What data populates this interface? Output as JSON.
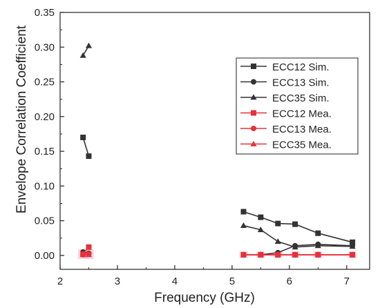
{
  "chart_data": {
    "type": "line",
    "title": "",
    "xlabel": "Frequency (GHz)",
    "ylabel": "Envelope Correlation Coefficient",
    "xlim": [
      2,
      7.4
    ],
    "ylim": [
      -0.02,
      0.35
    ],
    "x_ticks": [
      2,
      3,
      4,
      5,
      6,
      7
    ],
    "x_tick_labels": [
      "2",
      "3",
      "4",
      "5",
      "6",
      "7"
    ],
    "y_ticks": [
      0.0,
      0.05,
      0.1,
      0.15,
      0.2,
      0.25,
      0.3,
      0.35
    ],
    "y_tick_labels": [
      "0.00",
      "0.05",
      "0.10",
      "0.15",
      "0.20",
      "0.25",
      "0.30",
      "0.35"
    ],
    "grid": false,
    "legend_position": "right",
    "series": [
      {
        "name": "ECC12 Sim.",
        "color": "#333333",
        "marker": "square",
        "segments": [
          [
            [
              2.4,
              0.17
            ],
            [
              2.5,
              0.143
            ]
          ],
          [
            [
              5.2,
              0.063
            ],
            [
              5.5,
              0.055
            ],
            [
              5.8,
              0.046
            ],
            [
              6.1,
              0.045
            ],
            [
              6.5,
              0.032
            ],
            [
              7.1,
              0.019
            ]
          ]
        ]
      },
      {
        "name": "ECC13 Sim.",
        "color": "#333333",
        "marker": "circle",
        "segments": [
          [
            [
              2.4,
              0.005
            ],
            [
              2.5,
              0.003
            ]
          ],
          [
            [
              5.2,
              0.001
            ],
            [
              5.5,
              0.001
            ],
            [
              5.8,
              0.004
            ],
            [
              6.1,
              0.014
            ],
            [
              6.5,
              0.016
            ],
            [
              7.1,
              0.014
            ]
          ]
        ]
      },
      {
        "name": "ECC35 Sim.",
        "color": "#333333",
        "marker": "triangle",
        "segments": [
          [
            [
              2.4,
              0.288
            ],
            [
              2.5,
              0.302
            ]
          ],
          [
            [
              5.2,
              0.043
            ],
            [
              5.5,
              0.037
            ],
            [
              5.8,
              0.02
            ],
            [
              6.1,
              0.012
            ],
            [
              6.5,
              0.014
            ],
            [
              7.1,
              0.013
            ]
          ]
        ]
      },
      {
        "name": "ECC12 Mea.",
        "color": "#e8303a",
        "marker": "square",
        "segments": [
          [
            [
              2.4,
              0.002
            ],
            [
              2.5,
              0.012
            ]
          ],
          [
            [
              5.2,
              0.001
            ],
            [
              5.5,
              0.001
            ],
            [
              5.8,
              0.001
            ],
            [
              6.1,
              0.001
            ],
            [
              6.5,
              0.001
            ],
            [
              7.1,
              0.001
            ]
          ]
        ]
      },
      {
        "name": "ECC13 Mea.",
        "color": "#e8303a",
        "marker": "circle",
        "segments": [
          [
            [
              2.4,
              0.001
            ],
            [
              2.5,
              0.002
            ]
          ],
          [
            [
              5.2,
              0.001
            ],
            [
              5.5,
              0.001
            ],
            [
              5.8,
              0.001
            ],
            [
              6.1,
              0.001
            ],
            [
              6.5,
              0.001
            ],
            [
              7.1,
              0.001
            ]
          ]
        ]
      },
      {
        "name": "ECC35 Mea.",
        "color": "#e8303a",
        "marker": "triangle",
        "segments": [
          [
            [
              2.4,
              0.001
            ],
            [
              2.5,
              0.001
            ]
          ],
          [
            [
              5.2,
              0.001
            ],
            [
              5.5,
              0.001
            ],
            [
              5.8,
              0.001
            ],
            [
              6.1,
              0.001
            ],
            [
              6.5,
              0.001
            ],
            [
              7.1,
              0.001
            ]
          ]
        ]
      }
    ]
  }
}
